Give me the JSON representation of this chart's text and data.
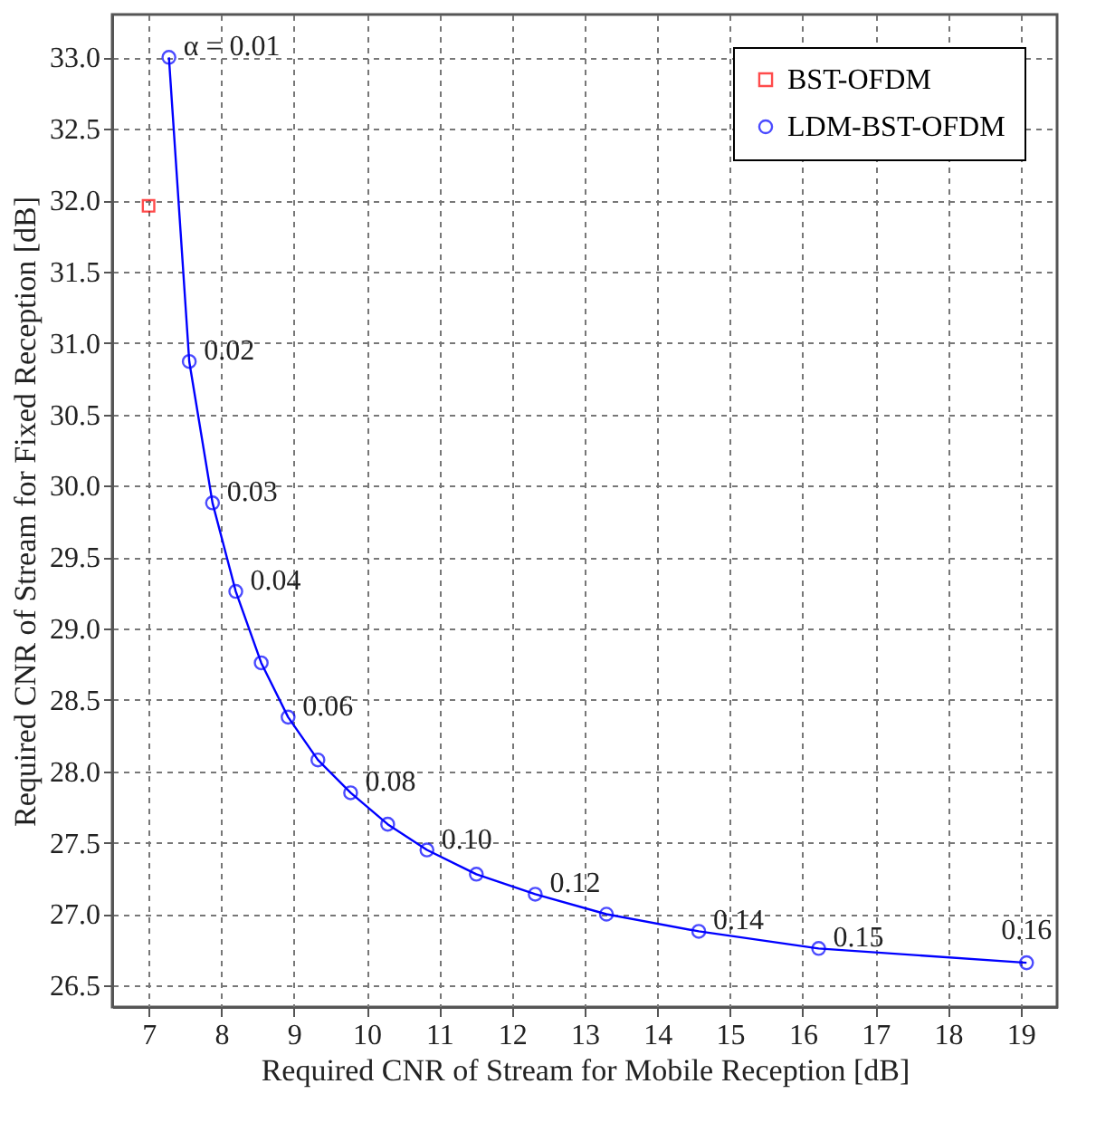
{
  "chart_data": {
    "type": "line",
    "xlabel": "Required CNR of Stream for Mobile Reception [dB]",
    "ylabel": "Required CNR of Stream for Fixed Reception [dB]",
    "xlim": [
      6.5,
      19.5
    ],
    "xticks": [
      7,
      8,
      9,
      10,
      11,
      12,
      13,
      14,
      15,
      16,
      17,
      18,
      19
    ],
    "ylim": [
      26.35,
      33.3
    ],
    "yticks": [
      26.5,
      {
        "value": 27,
        "label": "27.0"
      },
      27.5,
      {
        "value": 28,
        "label": "28.0"
      },
      28.5,
      {
        "value": 29,
        "label": "29.0"
      },
      29.5,
      {
        "value": 30,
        "label": "30.0"
      },
      30.5,
      {
        "value": 31,
        "label": "31.0"
      },
      31.5,
      {
        "value": 32,
        "label": "32.0"
      },
      32.5,
      {
        "value": 33,
        "label": "33.0"
      }
    ],
    "grid": true,
    "legend": "top right",
    "series": [
      {
        "name": "BST-OFDM",
        "type": "scatter",
        "marker": "square",
        "color": "#ff0000",
        "x": [
          7.0
        ],
        "values": [
          31.96
        ]
      },
      {
        "name": "LDM-BST-OFDM",
        "type": "line",
        "marker": "circle",
        "line_style": "solid",
        "color": "#0000ff",
        "x": [
          7.28,
          7.56,
          7.88,
          8.2,
          8.55,
          8.92,
          9.33,
          9.78,
          10.29,
          10.83,
          11.51,
          12.32,
          13.3,
          14.57,
          16.22,
          19.08
        ],
        "values": [
          33.0,
          30.87,
          29.88,
          29.26,
          28.76,
          28.38,
          28.08,
          27.85,
          27.63,
          27.45,
          27.28,
          27.14,
          27.0,
          26.88,
          26.76,
          26.66
        ]
      }
    ],
    "annotations": [
      {
        "text": "α = 0.01",
        "x": 7.28,
        "y": 33.0
      },
      {
        "text": "0.02",
        "x": 7.56,
        "y": 30.87
      },
      {
        "text": "0.03",
        "x": 7.88,
        "y": 29.88
      },
      {
        "text": "0.04",
        "x": 8.2,
        "y": 29.26
      },
      {
        "text": "0.06",
        "x": 8.92,
        "y": 28.38
      },
      {
        "text": "0.08",
        "x": 9.78,
        "y": 27.85
      },
      {
        "text": "0.10",
        "x": 10.83,
        "y": 27.45
      },
      {
        "text": "0.12",
        "x": 12.32,
        "y": 27.14
      },
      {
        "text": "0.14",
        "x": 14.57,
        "y": 26.88
      },
      {
        "text": "0.15",
        "x": 16.22,
        "y": 26.76
      },
      {
        "text": "0.16",
        "x": 19.08,
        "y": 26.66
      }
    ]
  }
}
